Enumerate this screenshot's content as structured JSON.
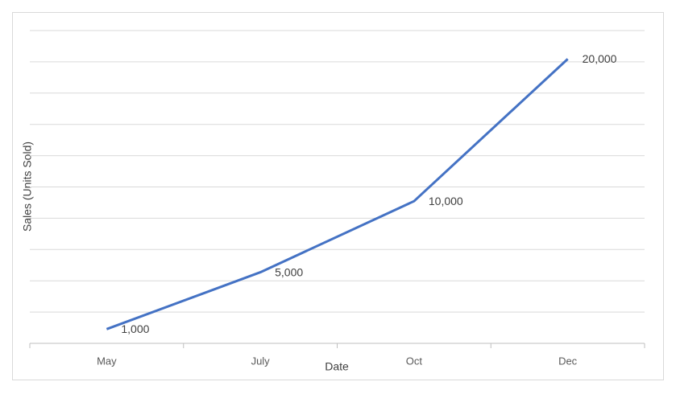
{
  "chart_data": {
    "type": "line",
    "x_label": "Date",
    "y_label": "Sales (Units Sold)",
    "categories": [
      "May",
      "July",
      "Oct",
      "Dec"
    ],
    "series": [
      {
        "color": "#4472c4",
        "values": [
          1000,
          5000,
          10000,
          20000
        ],
        "value_labels": [
          "1,000",
          "5,000",
          "10,000",
          "20,000"
        ]
      }
    ],
    "grid": true
  }
}
